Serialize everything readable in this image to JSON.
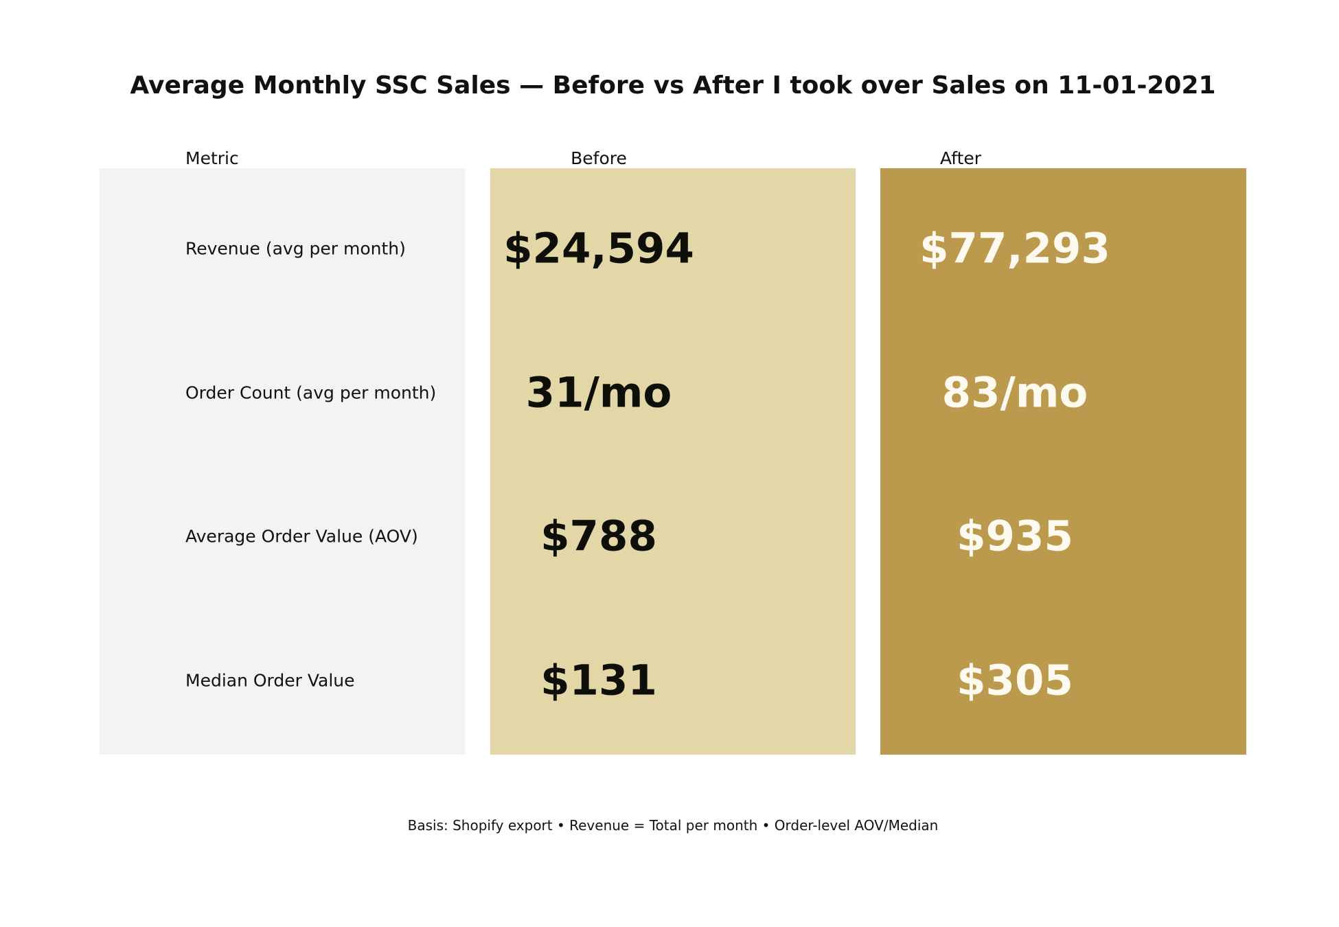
{
  "chart_data": {
    "type": "table",
    "title": "Average Monthly SSC Sales — Before vs After I took over Sales on 11-01-2021",
    "columns": [
      "Metric",
      "Before",
      "After"
    ],
    "rows": [
      {
        "metric": "Revenue (avg per month)",
        "before": "$24,594",
        "after": "$77,293"
      },
      {
        "metric": "Order Count (avg per month)",
        "before": "31/mo",
        "after": "83/mo"
      },
      {
        "metric": "Average Order Value (AOV)",
        "before": "$788",
        "after": "$935"
      },
      {
        "metric": "Median Order Value",
        "before": "$131",
        "after": "$305"
      }
    ],
    "footnote": "Basis: Shopify export • Revenue = Total per month • Order-level AOV/Median",
    "colors": {
      "metric_bg": "#f3f3f3",
      "before_bg": "#e3d7a7",
      "after_bg": "#bb994d",
      "before_text": "#0f0f0a",
      "after_text": "#fffaf0"
    }
  }
}
